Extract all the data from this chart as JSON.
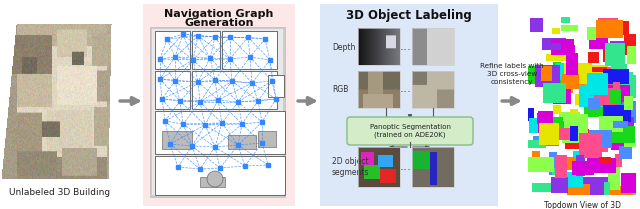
{
  "background_color": "#ffffff",
  "section1_label": "Unlabeled 3D Building",
  "section2_title_line1": "Navigation Graph",
  "section2_title_line2": "Generation",
  "section2_bg": "#fce8e6",
  "section3_title": "3D Object Labeling",
  "section3_bg": "#dce8f8",
  "section3_depth_label": "Depth",
  "section3_rgb_label": "RGB",
  "section3_seg_label": "2D object\nsegments",
  "section3_panoptic_label": "Panoptic Segmentation\n(trained on ADE20K)",
  "section4_label": "Topdown View of 3D\nSemantic Objects",
  "refine_line1": "Refine labels with",
  "refine_line2": "3D cross-view",
  "refine_line3": "consistency",
  "arrow_color": "#888888",
  "nav_graph_bg": "#cccccc",
  "nav_graph_inner": "#f0f0f0",
  "panoptic_box_color": "#d4ecc8",
  "panoptic_box_edge": "#88bb88",
  "wall_color": "#555555",
  "node_color": "#3388ff",
  "edge_color": "#3388ff",
  "label_fontsize": 6.5,
  "title_fontsize": 8.0,
  "small_fontsize": 5.5
}
